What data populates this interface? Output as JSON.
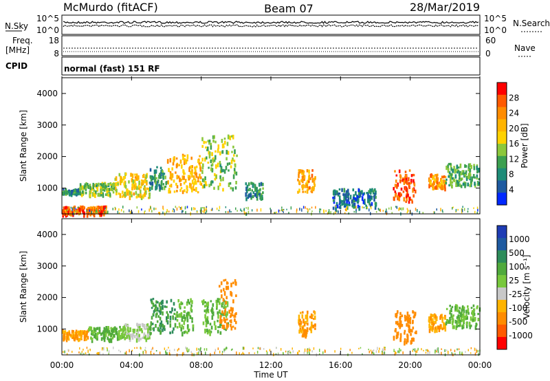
{
  "header": {
    "station": "McMurdo (fitACF)",
    "beam": "Beam 07",
    "date": "28/Mar/2019"
  },
  "noise_panel": {
    "left_label": "N.Sky",
    "right_label": "N.Search",
    "left_ticks": [
      "10^5",
      "10^0"
    ],
    "right_ticks": [
      "10^5",
      "10^0"
    ]
  },
  "freq_panel": {
    "left_label_1": "Freq.",
    "left_label_2": "[MHz]",
    "right_label": "Nave",
    "left_ticks": [
      "18",
      "8"
    ],
    "right_ticks": [
      "60",
      "0"
    ]
  },
  "cpid_panel": {
    "label": "CPID",
    "mode": "normal (fast) 151 RF"
  },
  "power_panel": {
    "ylabel": "Slant Range [km]",
    "yticks": [
      "4000",
      "3000",
      "2000",
      "1000"
    ],
    "colorbar_label": "Power [dB]",
    "colorbar_ticks": [
      "28",
      "24",
      "20",
      "16",
      "12",
      "8",
      "4"
    ],
    "colorbar_colors": [
      "#ff0000",
      "#ff5a00",
      "#ff8c00",
      "#ffb400",
      "#ffd200",
      "#8cc83c",
      "#3ca050",
      "#1e8c78",
      "#1e5aa0",
      "#0028ff"
    ]
  },
  "velocity_panel": {
    "ylabel": "Slant Range [km]",
    "yticks": [
      "4000",
      "3000",
      "2000",
      "1000"
    ],
    "colorbar_label": "Velocity [m s⁻¹]",
    "colorbar_ticks": [
      "1000",
      "500",
      "100",
      "25",
      "-25",
      "-100",
      "-500",
      "-1000"
    ],
    "colorbar_colors": [
      "#1e3cb4",
      "#1e5aa0",
      "#2d8c5a",
      "#50aa3c",
      "#78c83c",
      "#c8c8c8",
      "#ffb400",
      "#ff8c00",
      "#ff5a00",
      "#ff0000"
    ]
  },
  "xaxis": {
    "label": "Time UT",
    "ticks": [
      "00:00",
      "04:00",
      "08:00",
      "12:00",
      "16:00",
      "20:00",
      "00:00"
    ]
  },
  "chart_data": {
    "type": "heatmap",
    "x_unit": "hours UT",
    "xlim": [
      0,
      24
    ],
    "ylim": [
      180,
      4500
    ],
    "power_scatter": [
      {
        "x_start": 0.0,
        "x_end": 1.0,
        "y_min": 850,
        "y_max": 1000,
        "power": 10
      },
      {
        "x_start": 0.0,
        "x_end": 2.5,
        "y_min": 200,
        "y_max": 450,
        "power": 26
      },
      {
        "x_start": 1.0,
        "x_end": 3.0,
        "y_min": 800,
        "y_max": 1200,
        "power": 14
      },
      {
        "x_start": 3.0,
        "x_end": 5.0,
        "y_min": 700,
        "y_max": 1500,
        "power": 18
      },
      {
        "x_start": 5.0,
        "x_end": 6.0,
        "y_min": 1000,
        "y_max": 1700,
        "power": 10
      },
      {
        "x_start": 6.0,
        "x_end": 8.0,
        "y_min": 900,
        "y_max": 2100,
        "power": 20
      },
      {
        "x_start": 8.0,
        "x_end": 10.0,
        "y_min": 1000,
        "y_max": 2700,
        "power": 14
      },
      {
        "x_start": 10.5,
        "x_end": 11.5,
        "y_min": 700,
        "y_max": 1200,
        "power": 10
      },
      {
        "x_start": 13.5,
        "x_end": 14.5,
        "y_min": 900,
        "y_max": 1600,
        "power": 22
      },
      {
        "x_start": 15.5,
        "x_end": 18.0,
        "y_min": 400,
        "y_max": 1000,
        "power": 8
      },
      {
        "x_start": 19.0,
        "x_end": 20.3,
        "y_min": 600,
        "y_max": 1600,
        "power": 26
      },
      {
        "x_start": 21.0,
        "x_end": 22.0,
        "y_min": 1000,
        "y_max": 1500,
        "power": 22
      },
      {
        "x_start": 22.0,
        "x_end": 24.0,
        "y_min": 1100,
        "y_max": 1800,
        "power": 12
      }
    ],
    "velocity_scatter": [
      {
        "x_start": 0.0,
        "x_end": 1.5,
        "y_min": 700,
        "y_max": 1000,
        "velocity": -100
      },
      {
        "x_start": 1.5,
        "x_end": 3.5,
        "y_min": 700,
        "y_max": 1100,
        "velocity": 100
      },
      {
        "x_start": 3.5,
        "x_end": 5.0,
        "y_min": 700,
        "y_max": 1200,
        "velocity": 25
      },
      {
        "x_start": 5.0,
        "x_end": 6.5,
        "y_min": 900,
        "y_max": 2000,
        "velocity": 500
      },
      {
        "x_start": 6.5,
        "x_end": 7.5,
        "y_min": 900,
        "y_max": 2000,
        "velocity": 100
      },
      {
        "x_start": 8.0,
        "x_end": 9.5,
        "y_min": 900,
        "y_max": 2000,
        "velocity": 100
      },
      {
        "x_start": 9.0,
        "x_end": 10.0,
        "y_min": 1000,
        "y_max": 2600,
        "velocity": -300
      },
      {
        "x_start": 13.5,
        "x_end": 14.5,
        "y_min": 800,
        "y_max": 1600,
        "velocity": -100
      },
      {
        "x_start": 19.0,
        "x_end": 20.3,
        "y_min": 600,
        "y_max": 1600,
        "velocity": -200
      },
      {
        "x_start": 21.0,
        "x_end": 22.0,
        "y_min": 1000,
        "y_max": 1500,
        "velocity": -100
      },
      {
        "x_start": 22.0,
        "x_end": 24.0,
        "y_min": 1100,
        "y_max": 1800,
        "velocity": 100
      }
    ]
  }
}
